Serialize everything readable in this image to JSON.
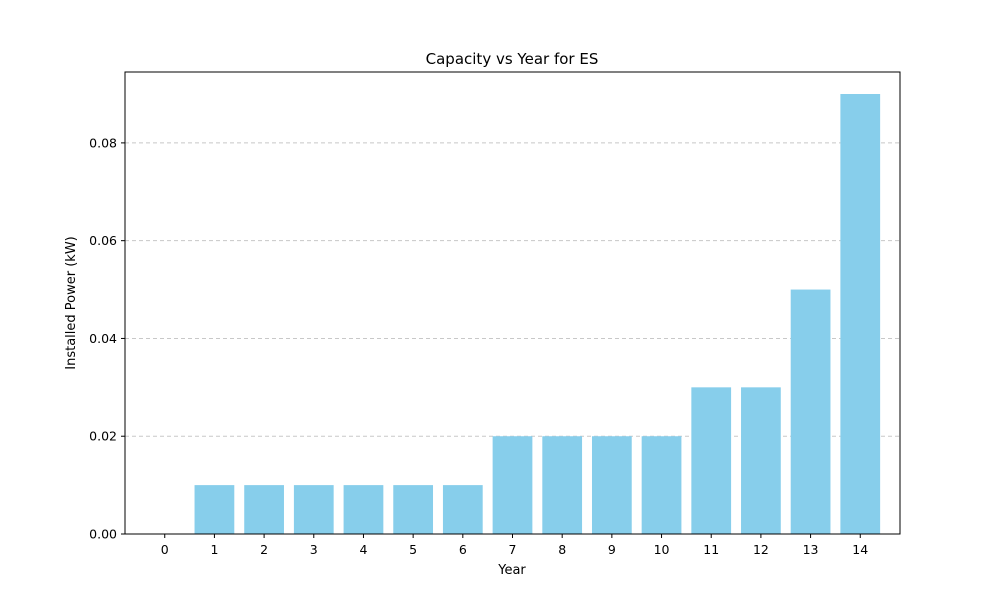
{
  "chart_data": {
    "type": "bar",
    "title": "Capacity vs Year for ES",
    "xlabel": "Year",
    "ylabel": "Installed Power (kW)",
    "categories": [
      "0",
      "1",
      "2",
      "3",
      "4",
      "5",
      "6",
      "7",
      "8",
      "9",
      "10",
      "11",
      "12",
      "13",
      "14"
    ],
    "values": [
      0.0,
      0.01,
      0.01,
      0.01,
      0.01,
      0.01,
      0.01,
      0.02,
      0.02,
      0.02,
      0.02,
      0.03,
      0.03,
      0.05,
      0.09
    ],
    "ylim": [
      0,
      0.0945
    ],
    "yticks": [
      "0.00",
      "0.02",
      "0.04",
      "0.06",
      "0.08"
    ],
    "grid": "y-dashed",
    "bar_color": "#87ceeb"
  }
}
